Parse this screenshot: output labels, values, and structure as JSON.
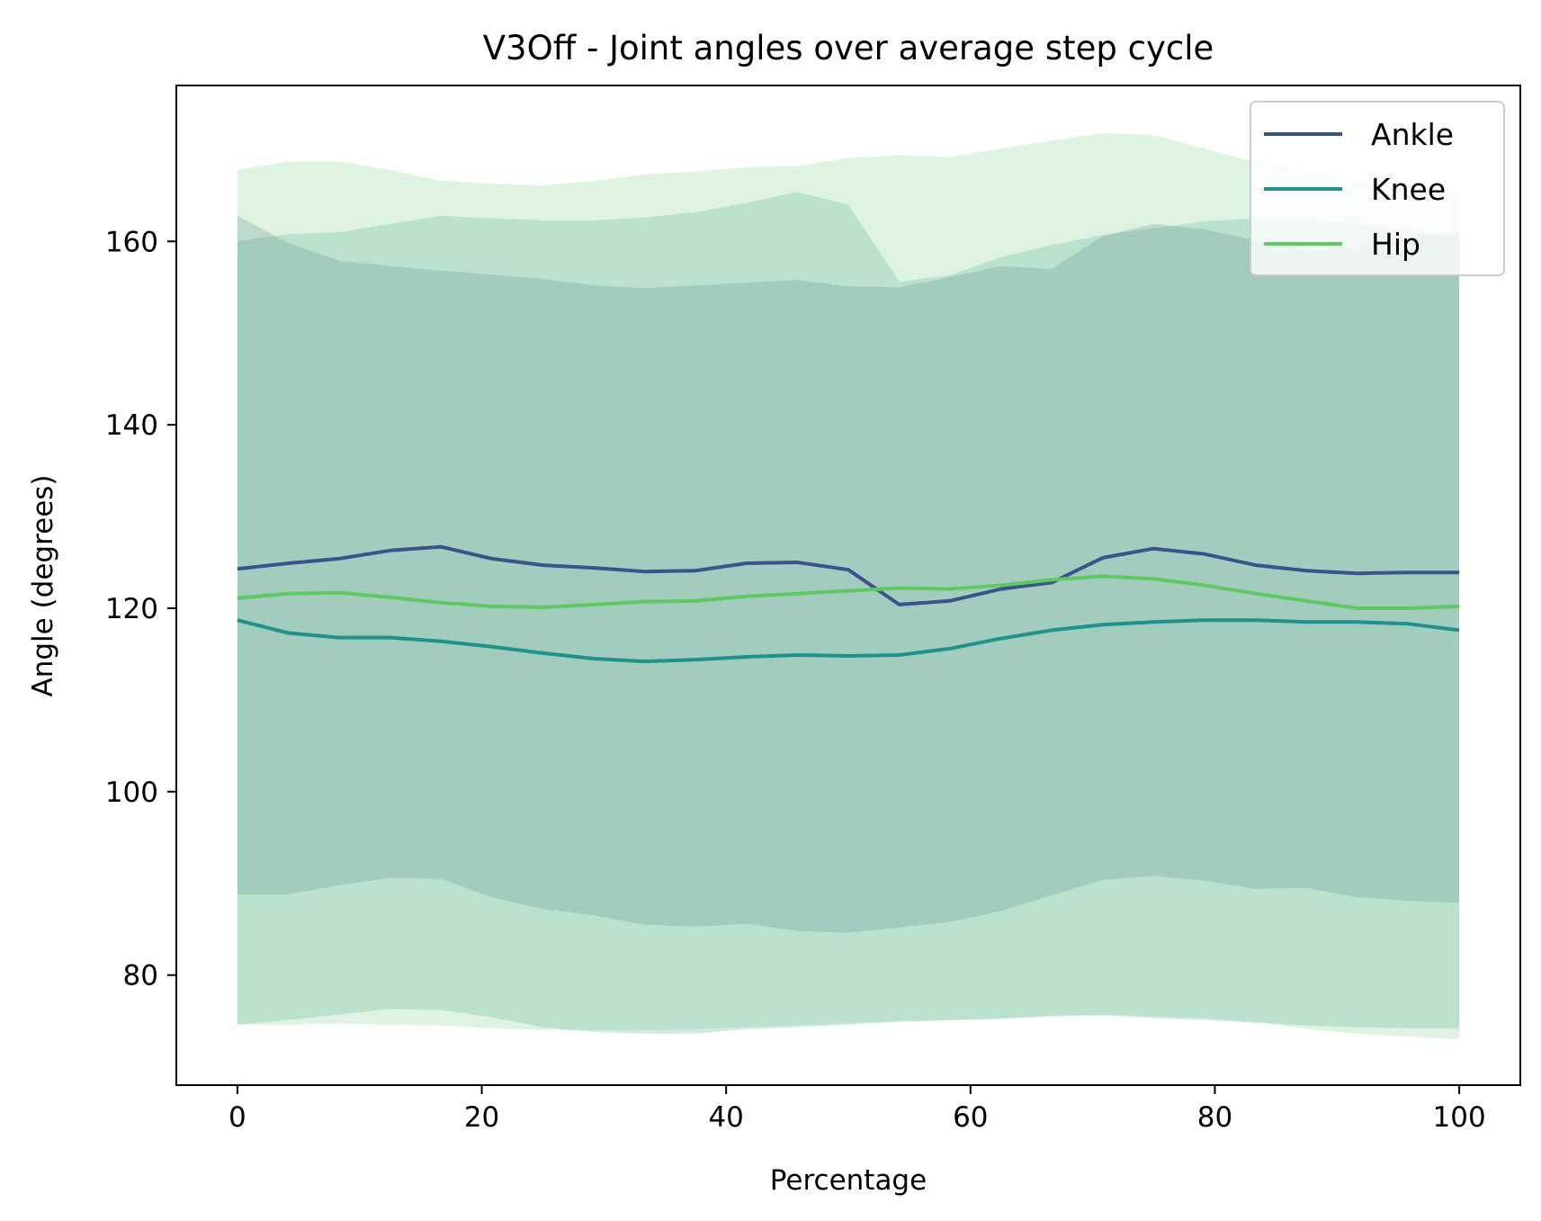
{
  "chart_data": {
    "type": "line",
    "title": "V3Off - Joint angles over average step cycle",
    "xlabel": "Percentage",
    "ylabel": "Angle (degrees)",
    "xlim": [
      -5,
      105
    ],
    "ylim": [
      68,
      177
    ],
    "xticks": [
      0,
      20,
      40,
      60,
      80,
      100
    ],
    "yticks": [
      80,
      100,
      120,
      140,
      160
    ],
    "grid": false,
    "legend_position": "top-right",
    "x": [
      0,
      4.17,
      8.33,
      12.5,
      16.67,
      20.83,
      25,
      29.17,
      33.33,
      37.5,
      41.67,
      45.83,
      50,
      54.17,
      58.33,
      62.5,
      66.67,
      70.83,
      75,
      79.17,
      83.33,
      87.5,
      91.67,
      95.83,
      100
    ],
    "series": [
      {
        "name": "Ankle",
        "color": "#3b528b",
        "values": [
          124.3,
          124.9,
          125.4,
          126.3,
          126.7,
          125.4,
          124.7,
          124.4,
          124.0,
          124.1,
          124.9,
          125.0,
          124.2,
          120.4,
          120.8,
          122.1,
          122.8,
          125.5,
          126.5,
          125.9,
          124.7,
          124.1,
          123.8,
          123.9,
          123.9
        ],
        "band_upper": [
          162.8,
          159.8,
          157.9,
          157.3,
          156.8,
          156.4,
          155.9,
          155.2,
          154.9,
          155.2,
          155.5,
          155.8,
          155.1,
          155.0,
          156.1,
          157.3,
          157.0,
          160.6,
          161.9,
          161.3,
          160.1,
          159.0,
          159.4,
          160.5,
          161.0
        ],
        "band_lower": [
          88.8,
          88.8,
          89.8,
          90.6,
          90.5,
          88.5,
          87.2,
          86.5,
          85.5,
          85.3,
          85.6,
          84.8,
          84.6,
          85.2,
          85.8,
          87.0,
          88.7,
          90.4,
          90.8,
          90.3,
          89.4,
          89.5,
          88.5,
          88.1,
          87.9
        ],
        "band_color": "#3b528b"
      },
      {
        "name": "Knee",
        "color": "#21918c",
        "values": [
          118.7,
          117.3,
          116.8,
          116.8,
          116.4,
          115.8,
          115.1,
          114.5,
          114.2,
          114.4,
          114.7,
          114.9,
          114.8,
          114.9,
          115.6,
          116.7,
          117.6,
          118.2,
          118.5,
          118.7,
          118.7,
          118.5,
          118.5,
          118.3,
          117.6
        ],
        "band_upper": [
          160.0,
          160.8,
          161.0,
          161.9,
          162.8,
          162.5,
          162.3,
          162.3,
          162.6,
          163.2,
          164.2,
          165.4,
          164.0,
          155.6,
          156.3,
          158.3,
          159.6,
          160.7,
          161.4,
          162.2,
          162.5,
          162.4,
          162.0,
          161.2,
          160.3
        ],
        "band_lower": [
          74.6,
          75.1,
          75.7,
          76.3,
          76.2,
          75.4,
          74.3,
          73.8,
          73.6,
          73.6,
          74.1,
          74.3,
          74.6,
          74.9,
          75.1,
          75.2,
          75.5,
          75.6,
          75.3,
          75.1,
          74.8,
          74.5,
          74.3,
          74.2,
          74.2
        ],
        "band_color": "#21918c"
      },
      {
        "name": "Hip",
        "color": "#5ec962",
        "values": [
          121.1,
          121.6,
          121.7,
          121.2,
          120.6,
          120.2,
          120.1,
          120.4,
          120.7,
          120.8,
          121.3,
          121.6,
          121.9,
          122.2,
          122.1,
          122.5,
          123.1,
          123.5,
          123.2,
          122.5,
          121.6,
          120.8,
          120.0,
          120.0,
          120.2
        ],
        "band_upper": [
          167.8,
          168.7,
          168.7,
          167.8,
          166.6,
          166.3,
          166.1,
          166.6,
          167.3,
          167.6,
          168.1,
          168.2,
          169.1,
          169.4,
          169.2,
          170.1,
          171.0,
          171.8,
          171.6,
          170.1,
          168.6,
          167.4,
          166.5,
          165.8,
          165.3
        ],
        "band_lower": [
          74.6,
          74.6,
          74.7,
          74.6,
          74.5,
          74.2,
          74.0,
          74.0,
          74.0,
          74.1,
          74.3,
          74.5,
          74.8,
          75.0,
          75.1,
          75.3,
          75.6,
          75.7,
          75.5,
          75.3,
          74.9,
          74.1,
          73.6,
          73.3,
          73.0
        ],
        "band_color": "#5ec962"
      }
    ]
  }
}
